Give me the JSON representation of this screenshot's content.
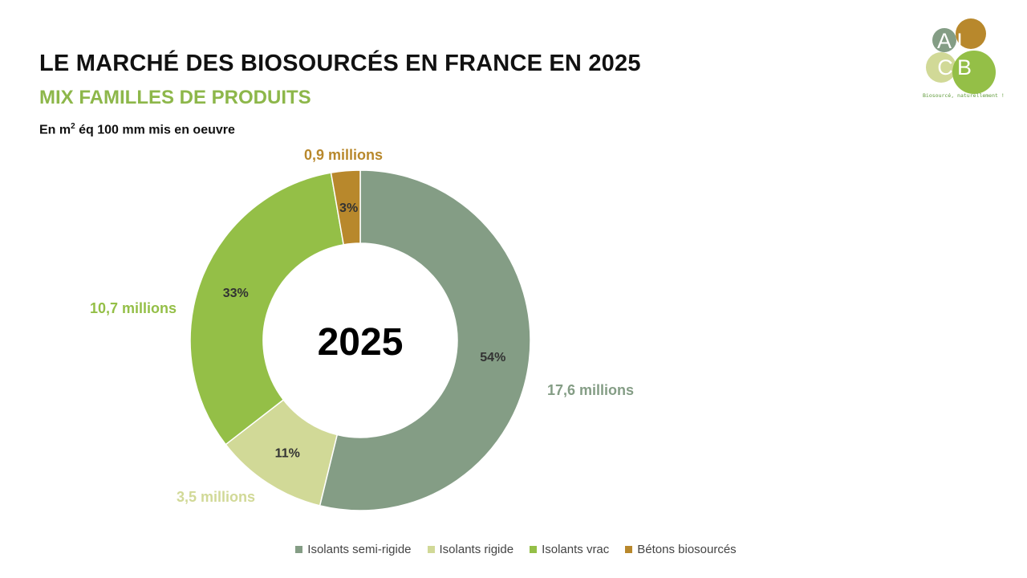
{
  "header": {
    "title": "LE MARCHÉ DES BIOSOURCÉS EN FRANCE EN 2025",
    "subtitle": "MIX FAMILLES DE PRODUITS",
    "unit_prefix": "En m",
    "unit_sup": "2",
    "unit_suffix": " éq 100 mm mis en oeuvre"
  },
  "colors": {
    "subtitle": "#8db74a",
    "semi_rigide": "#849d85",
    "rigide": "#d1d997",
    "vrac": "#94bf47",
    "betons": "#b8882c"
  },
  "logo": {
    "letters": [
      "A",
      "I",
      "C",
      "B"
    ],
    "tagline": "Biosourcé, naturellement !"
  },
  "chart_data": {
    "type": "pie",
    "subtype": "donut",
    "center_label": "2025",
    "categories": [
      "Isolants semi-rigide",
      "Isolants rigide",
      "Isolants vrac",
      "Bétons biosourcés"
    ],
    "values": [
      17.6,
      3.5,
      10.7,
      0.9
    ],
    "percent_labels": [
      "54%",
      "11%",
      "33%",
      "3%"
    ],
    "value_labels": [
      "17,6 millions",
      "3,5 millions",
      "10,7 millions",
      "0,9 millions"
    ],
    "colors": [
      "#849d85",
      "#d1d997",
      "#94bf47",
      "#b8882c"
    ],
    "legend_position": "bottom"
  }
}
